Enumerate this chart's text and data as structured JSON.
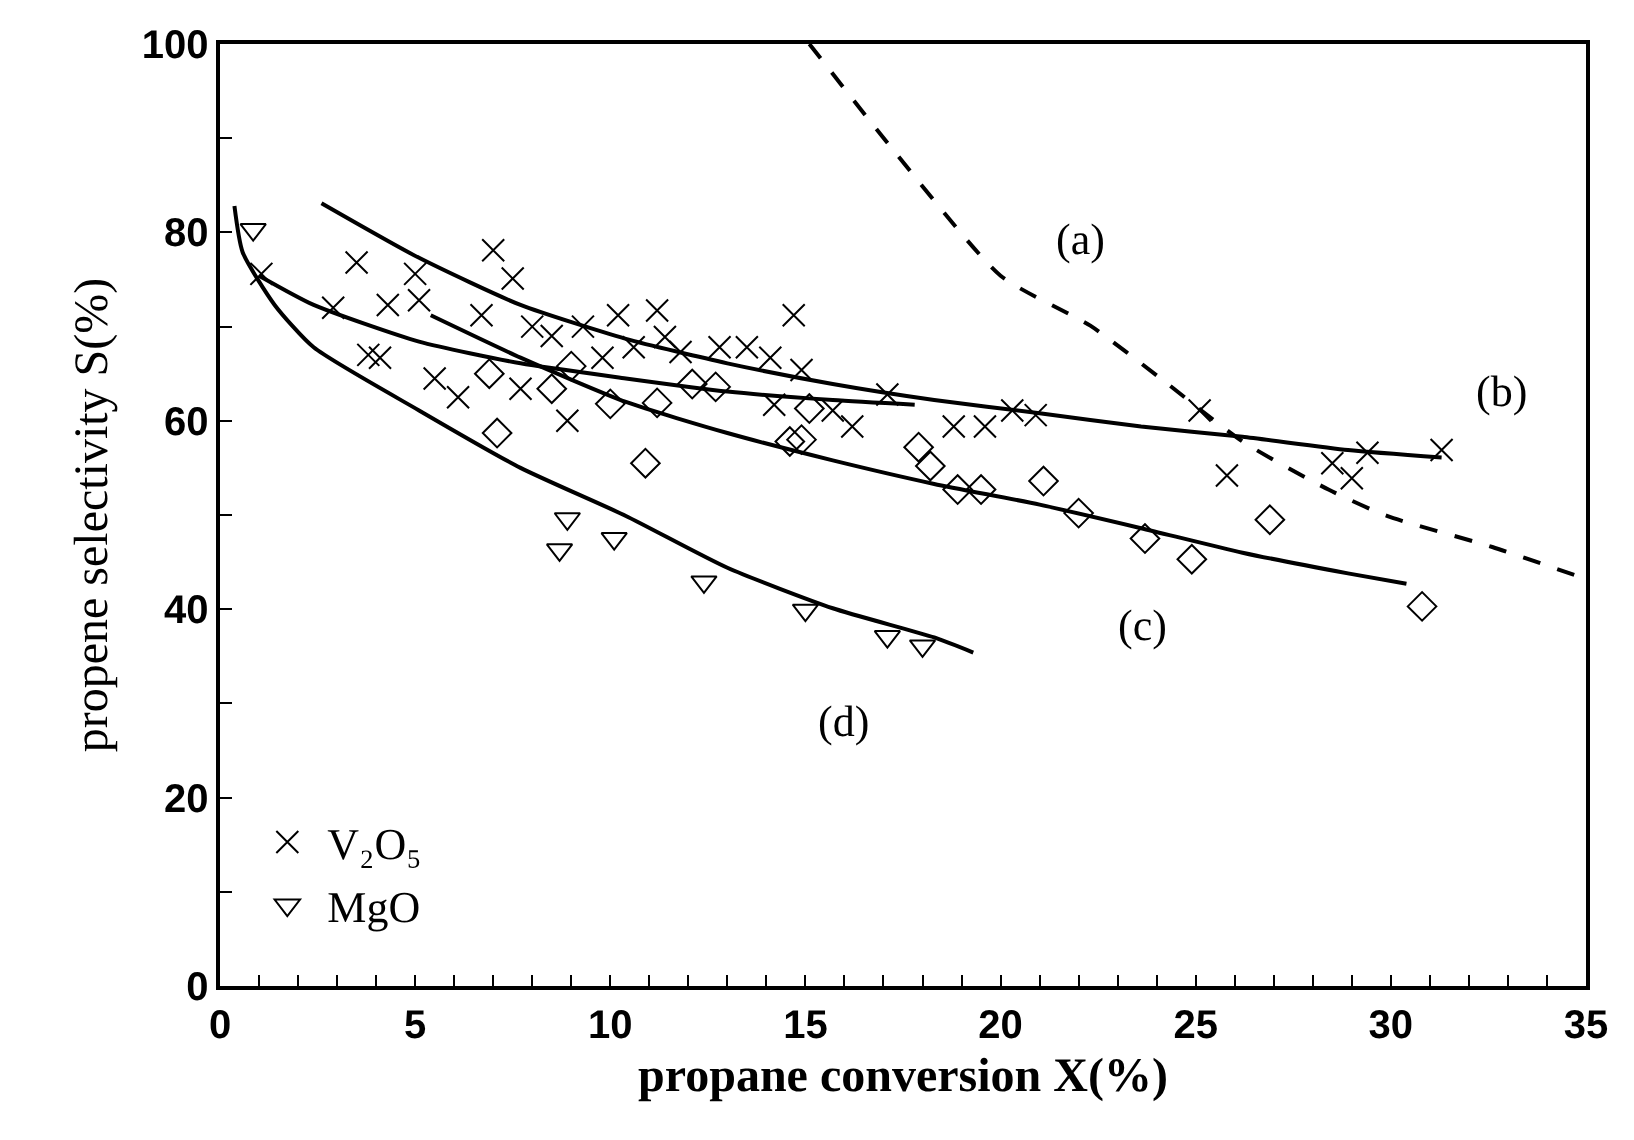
{
  "chart_data": {
    "type": "scatter",
    "xlabel": "propane conversion X(%)",
    "ylabel": "propene selectivity S(%)",
    "xlim": [
      0,
      35
    ],
    "ylim": [
      0,
      100
    ],
    "xticks": [
      0,
      {
        "value": 1,
        "label": null
      },
      {
        "value": 2,
        "label": null
      },
      {
        "value": 3,
        "label": null
      },
      {
        "value": 4,
        "label": null
      },
      5,
      {
        "value": 6,
        "label": null
      },
      {
        "value": 7,
        "label": null
      },
      {
        "value": 8,
        "label": null
      },
      {
        "value": 9,
        "label": null
      },
      10,
      {
        "value": 11,
        "label": null
      },
      {
        "value": 12,
        "label": null
      },
      {
        "value": 13,
        "label": null
      },
      {
        "value": 14,
        "label": null
      },
      15,
      {
        "value": 16,
        "label": null
      },
      {
        "value": 17,
        "label": null
      },
      {
        "value": 18,
        "label": null
      },
      {
        "value": 19,
        "label": null
      },
      20,
      {
        "value": 21,
        "label": null
      },
      {
        "value": 22,
        "label": null
      },
      {
        "value": 23,
        "label": null
      },
      {
        "value": 24,
        "label": null
      },
      25,
      {
        "value": 26,
        "label": null
      },
      {
        "value": 27,
        "label": null
      },
      {
        "value": 28,
        "label": null
      },
      {
        "value": 29,
        "label": null
      },
      30,
      {
        "value": 31,
        "label": null
      },
      {
        "value": 32,
        "label": null
      },
      {
        "value": 33,
        "label": null
      },
      {
        "value": 34,
        "label": null
      },
      35
    ],
    "yticks": [
      0,
      {
        "value": 10,
        "label": null
      },
      20,
      {
        "value": 30,
        "label": null
      },
      40,
      {
        "value": 50,
        "label": null
      },
      60,
      {
        "value": 70,
        "label": null
      },
      80,
      {
        "value": 90,
        "label": null
      },
      100
    ],
    "grid": false,
    "legend": "bottom left",
    "series": [
      {
        "name": "V₂O₅",
        "color": "#000000",
        "marker": "cross",
        "x": [
          1.06,
          2.9,
          3.5,
          3.8,
          4.1,
          4.3,
          5.0,
          5.1,
          5.5,
          6.1,
          6.7,
          7.0,
          7.5,
          7.7,
          8.0,
          8.5,
          8.9,
          9.3,
          9.8,
          10.2,
          10.6,
          11.2,
          11.4,
          11.8,
          12.8,
          13.5,
          14.1,
          14.7,
          14.9,
          14.2,
          15.7,
          16.2,
          17.1,
          18.8,
          19.6,
          20.3,
          20.9,
          25.1,
          25.8,
          28.5,
          29.0,
          29.4,
          31.3
        ],
        "values": [
          75.6,
          72,
          76.8,
          67,
          66.7,
          72.3,
          75.6,
          72.8,
          64.5,
          62.5,
          71.2,
          78.1,
          75.1,
          63.4,
          70,
          69,
          60,
          70,
          66.7,
          71.2,
          67.8,
          71.7,
          68.9,
          67.3,
          67.8,
          67.8,
          66.7,
          71.2,
          65.4,
          61.7,
          61.1,
          59.4,
          62.8,
          59.4,
          59.4,
          61.1,
          60.6,
          61.1,
          54.2,
          55.5,
          53.9,
          56.6,
          56.9
        ]
      },
      {
        "color": "#000000",
        "marker": "diamond",
        "x": [
          6.9,
          7.1,
          8.5,
          9.0,
          10.0,
          10.9,
          11.2,
          12.1,
          12.7,
          14.6,
          14.9,
          15.1,
          17.9,
          18.2,
          18.9,
          19.5,
          21.1,
          22.0,
          23.7,
          24.9,
          26.9,
          30.8
        ],
        "values": [
          65,
          58.7,
          63.4,
          65.8,
          61.8,
          55.5,
          61.9,
          63.9,
          63.6,
          57.8,
          58,
          61.3,
          57.2,
          55.2,
          52.7,
          52.7,
          53.6,
          50.2,
          47.5,
          45.3,
          49.5,
          40.3
        ]
      },
      {
        "name": "MgO",
        "color": "#000000",
        "marker": "triangle",
        "x": [
          0.85,
          8.9,
          8.7,
          10.1,
          12.4,
          15.0,
          17.1,
          18.0
        ],
        "values": [
          80.3,
          49.6,
          46.3,
          47.5,
          42.9,
          39.9,
          37.1,
          36.1
        ]
      },
      {
        "type": "line",
        "color": "#000000",
        "marker": "none",
        "line_style": "dashed",
        "x": [
          15.1,
          17.2,
          20,
          22.3,
          24.1,
          26.2,
          28.4,
          29.9,
          32.6,
          35
        ],
        "values": [
          100,
          89,
          75.4,
          70.1,
          64.5,
          57.8,
          52.7,
          49.9,
          46.6,
          43.2
        ]
      },
      {
        "type": "line",
        "color": "#000000",
        "marker": "none",
        "line_style": "solid",
        "x": [
          2.6,
          5.1,
          7.7,
          10.4,
          13,
          15.7,
          18.3,
          21,
          23.6,
          26.2,
          28.9,
          31.3
        ],
        "values": [
          83.1,
          77.3,
          72.3,
          68.7,
          66.1,
          63.9,
          62.2,
          60.8,
          59.4,
          58.3,
          56.9,
          56.1
        ]
      },
      {
        "type": "line",
        "color": "#000000",
        "marker": "none",
        "line_style": "solid",
        "x": [
          1.0,
          2.4,
          5.1,
          7.7,
          10.4,
          13,
          15.7,
          17.8
        ],
        "values": [
          75.4,
          72.3,
          68.4,
          66.1,
          64.5,
          63.1,
          62.2,
          61.7
        ]
      },
      {
        "type": "line",
        "color": "#000000",
        "marker": "none",
        "line_style": "solid",
        "x": [
          5.4,
          7.7,
          10.4,
          13,
          15.7,
          18.3,
          21,
          23.6,
          26.2,
          28.9,
          30.4
        ],
        "values": [
          71.2,
          66.7,
          62,
          58.7,
          55.8,
          53.3,
          51.1,
          48.6,
          46,
          43.8,
          42.7
        ]
      },
      {
        "type": "line",
        "color": "#000000",
        "marker": "none",
        "line_style": "solid",
        "x": [
          0.37,
          0.58,
          1.4,
          2.4,
          5.1,
          7.7,
          10.4,
          13,
          15.7,
          18.3,
          19.3
        ],
        "values": [
          82.8,
          77.9,
          72.3,
          67.8,
          61.1,
          55,
          49.9,
          44.4,
          40.1,
          37,
          35.4
        ]
      }
    ],
    "annotations": [
      {
        "text": "(a)",
        "x": 20,
        "y": 75.4
      },
      {
        "text": "(b)",
        "x": 31.3,
        "y": 56.1
      },
      {
        "text": "(c)",
        "x": 23.6,
        "y": 48.6
      },
      {
        "text": "(d)",
        "x": 15.7,
        "y": 40.1
      }
    ]
  }
}
